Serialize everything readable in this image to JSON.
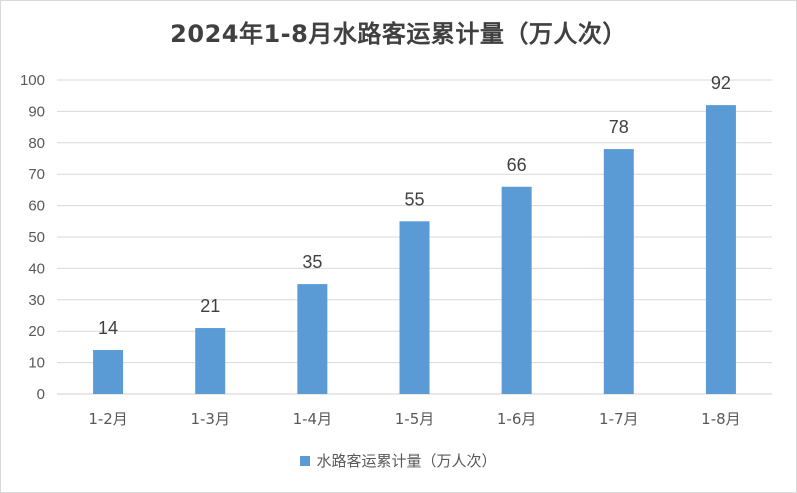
{
  "chart_data": {
    "type": "bar",
    "title": "2024年1-8月水路客运累计量（万人次）",
    "categories": [
      "1-2月",
      "1-3月",
      "1-4月",
      "1-5月",
      "1-6月",
      "1-7月",
      "1-8月"
    ],
    "series": [
      {
        "name": "水路客运累计量（万人次）",
        "values": [
          14,
          21,
          35,
          55,
          66,
          78,
          92
        ],
        "color": "#5b9bd5"
      }
    ],
    "ylim": [
      0,
      100
    ],
    "yticks": [
      0,
      10,
      20,
      30,
      40,
      50,
      60,
      70,
      80,
      90,
      100
    ],
    "xlabel": "",
    "ylabel": "",
    "grid": true,
    "legend": "bottom",
    "data_labels": true
  }
}
